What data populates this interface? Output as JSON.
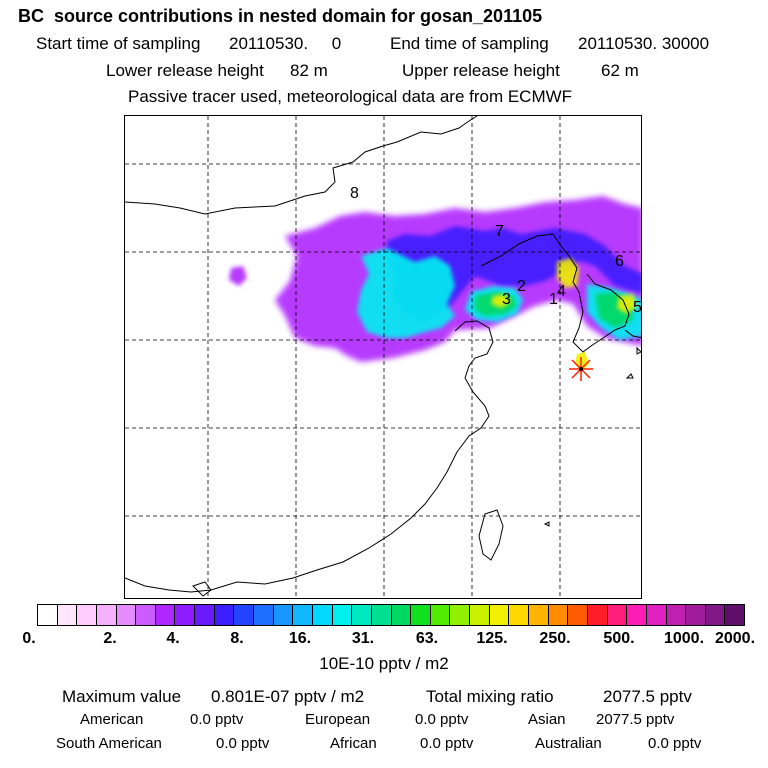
{
  "header": {
    "title": "BC  source contributions in nested domain for gosan_201105",
    "start_label": "Start time of sampling",
    "start_value": "20110530.     0",
    "end_label": "End time of sampling",
    "end_value": "20110530. 30000",
    "lower_label": "Lower release height",
    "lower_value": "82 m",
    "upper_label": "Upper release height",
    "upper_value": "62 m",
    "tracer_note": "Passive tracer used, meteorological data are from ECMWF"
  },
  "map": {
    "region_labels": [
      "1",
      "2",
      "3",
      "4",
      "5",
      "6",
      "7",
      "8"
    ],
    "receptor_marker": "star-icon"
  },
  "colorbar": {
    "colors": [
      "#ffffff",
      "#ffe6ff",
      "#ffccff",
      "#f5b0ff",
      "#e58cff",
      "#cc5cff",
      "#b026ff",
      "#8f1cff",
      "#6a1aff",
      "#3d1eff",
      "#2244ff",
      "#1e6eff",
      "#1996ff",
      "#12b8ff",
      "#00d8ff",
      "#00f0f0",
      "#00e8c0",
      "#00e090",
      "#00d860",
      "#10e020",
      "#50ec00",
      "#90f000",
      "#c8f000",
      "#f0f000",
      "#ffd800",
      "#ffb400",
      "#ff8c00",
      "#ff5a00",
      "#ff1e28",
      "#ff1e7a",
      "#ff1eb4",
      "#e020c0",
      "#c020b0",
      "#a01c9c",
      "#801888",
      "#5e1068"
    ],
    "tick_labels": [
      "0.",
      "2.",
      "4.",
      "8.",
      "16.",
      "31.",
      "63.",
      "125.",
      "250.",
      "500.",
      "1000.",
      "2000."
    ],
    "units": "10E-10 pptv / m2"
  },
  "stats": {
    "max_label": "Maximum value",
    "max_value": "0.801E-07 pptv / m2",
    "total_label": "Total mixing ratio",
    "total_value": "2077.5 pptv",
    "american_label": "American",
    "american_value": "0.0 pptv",
    "european_label": "European",
    "european_value": "0.0 pptv",
    "asian_label": "Asian",
    "asian_value": "2077.5 pptv",
    "south_american_label": "South American",
    "south_american_value": "0.0 pptv",
    "african_label": "African",
    "african_value": "0.0 pptv",
    "australian_label": "Australian",
    "australian_value": "0.0 pptv"
  }
}
